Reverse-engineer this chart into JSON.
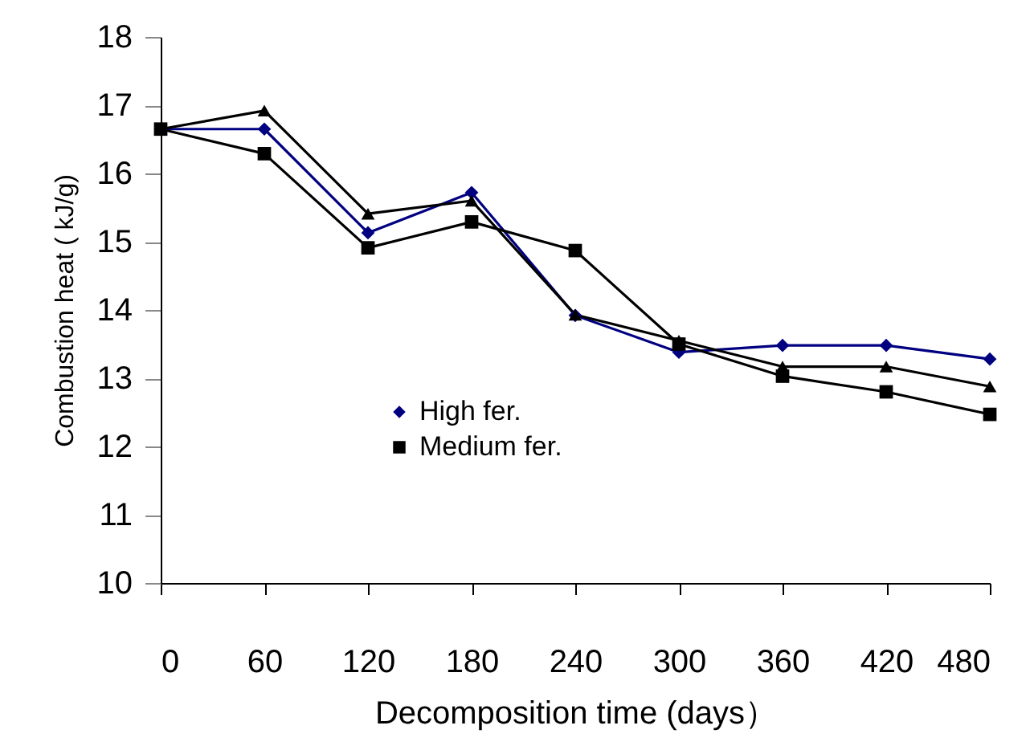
{
  "chart_data": {
    "type": "line",
    "xlabel": "Decomposition time (days）",
    "ylabel": "Combustion heat ( kJ/g)",
    "x": [
      0,
      60,
      120,
      180,
      240,
      300,
      360,
      420,
      480
    ],
    "series": [
      {
        "name": "High fer.",
        "color": "#000080",
        "marker": "diamond",
        "values": [
          16.65,
          16.65,
          15.13,
          15.72,
          13.92,
          13.38,
          13.48,
          13.48,
          13.28
        ]
      },
      {
        "color": "#000000",
        "marker": "triangle",
        "values": [
          16.65,
          16.92,
          15.41,
          15.6,
          13.93,
          13.55,
          13.17,
          13.17,
          12.88
        ]
      },
      {
        "name": "Medium fer.",
        "color": "#000000",
        "marker": "square",
        "values": [
          16.65,
          16.29,
          14.91,
          15.29,
          14.87,
          13.5,
          13.03,
          12.8,
          12.47
        ]
      }
    ],
    "xlim": [
      0,
      480
    ],
    "xticks": [
      0,
      60,
      120,
      180,
      240,
      300,
      360,
      420,
      480
    ],
    "ylim": [
      10,
      18
    ],
    "yticks": [
      10,
      11,
      12,
      13,
      14,
      15,
      16,
      17,
      18
    ],
    "legend": "bottom left",
    "line_style": "solid"
  }
}
